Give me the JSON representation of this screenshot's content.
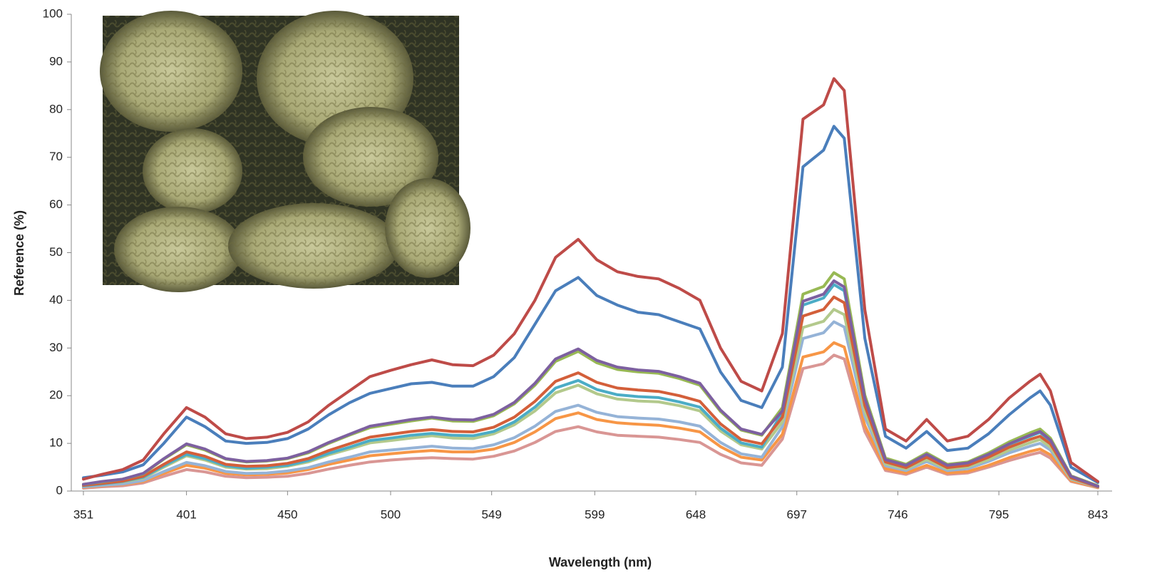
{
  "chart_data": {
    "type": "line",
    "xlabel": "Wavelength (nm)",
    "ylabel": "Reference (%)",
    "x": [
      351,
      360,
      370,
      380,
      390,
      401,
      410,
      420,
      430,
      440,
      450,
      460,
      470,
      480,
      490,
      500,
      510,
      520,
      530,
      540,
      550,
      560,
      570,
      580,
      591,
      600,
      610,
      620,
      630,
      640,
      650,
      660,
      670,
      680,
      690,
      700,
      710,
      715,
      720,
      730,
      740,
      750,
      760,
      770,
      780,
      790,
      800,
      810,
      815,
      820,
      830,
      843
    ],
    "xlim": [
      351,
      843
    ],
    "xticks": [
      351,
      401,
      450,
      500,
      549,
      599,
      648,
      697,
      746,
      795,
      843
    ],
    "ylim": [
      0,
      100
    ],
    "yticks": [
      0,
      10,
      20,
      30,
      40,
      50,
      60,
      70,
      80,
      90,
      100
    ],
    "grid": false,
    "series": [
      {
        "color": "#d99694",
        "values": [
          0.6,
          0.9,
          1.1,
          1.7,
          3.1,
          4.5,
          4.0,
          3.1,
          2.8,
          2.9,
          3.1,
          3.7,
          4.6,
          5.4,
          6.1,
          6.5,
          6.8,
          7.0,
          6.8,
          6.7,
          7.3,
          8.4,
          10.2,
          12.5,
          13.5,
          12.4,
          11.7,
          11.5,
          11.3,
          10.8,
          10.2,
          7.7,
          5.9,
          5.4,
          10.9,
          25.7,
          26.7,
          28.5,
          27.7,
          12.5,
          4.3,
          3.5,
          5.0,
          3.5,
          3.8,
          5.0,
          6.4,
          7.6,
          8.1,
          6.9,
          2.0,
          0.7
        ]
      },
      {
        "color": "#f79646",
        "values": [
          0.8,
          1.1,
          1.4,
          2.0,
          3.7,
          5.4,
          4.8,
          3.7,
          3.4,
          3.5,
          3.8,
          4.5,
          5.6,
          6.5,
          7.4,
          7.8,
          8.2,
          8.5,
          8.2,
          8.2,
          8.8,
          10.2,
          12.4,
          15.2,
          16.4,
          15.0,
          14.3,
          14.0,
          13.8,
          13.2,
          12.4,
          9.3,
          7.1,
          6.5,
          11.9,
          28.1,
          29.2,
          31.1,
          30.2,
          13.7,
          4.7,
          3.8,
          5.4,
          3.8,
          4.1,
          5.4,
          7.0,
          8.3,
          8.8,
          7.6,
          2.2,
          0.7
        ]
      },
      {
        "color": "#95b3d7",
        "values": [
          0.9,
          1.2,
          1.5,
          2.2,
          4.1,
          6.0,
          5.3,
          4.1,
          3.7,
          3.8,
          4.2,
          4.9,
          6.1,
          7.1,
          8.2,
          8.6,
          9.0,
          9.4,
          9.0,
          8.9,
          9.7,
          11.2,
          13.6,
          16.7,
          18.0,
          16.5,
          15.6,
          15.3,
          15.1,
          14.5,
          13.6,
          10.2,
          7.8,
          7.1,
          13.5,
          32.0,
          33.2,
          35.5,
          34.4,
          15.6,
          5.3,
          4.3,
          6.2,
          4.3,
          4.7,
          6.2,
          8.0,
          9.4,
          10.0,
          8.6,
          2.5,
          0.8
        ]
      },
      {
        "color": "#b3c98c",
        "values": [
          1.1,
          1.5,
          1.9,
          2.7,
          5.0,
          7.4,
          6.5,
          5.0,
          4.6,
          4.7,
          5.2,
          6.1,
          7.6,
          8.8,
          10.1,
          10.6,
          11.1,
          11.6,
          11.1,
          11.0,
          12.0,
          13.9,
          16.8,
          20.6,
          22.2,
          20.4,
          19.3,
          18.9,
          18.7,
          17.9,
          16.8,
          12.6,
          9.7,
          8.8,
          14.5,
          34.3,
          35.6,
          38.1,
          37.0,
          16.7,
          5.7,
          4.6,
          6.6,
          4.6,
          5.1,
          6.6,
          8.6,
          10.1,
          10.8,
          9.2,
          2.6,
          0.9
        ]
      },
      {
        "color": "#4bacc6",
        "values": [
          1.1,
          1.5,
          2.0,
          2.9,
          5.3,
          7.7,
          6.8,
          5.3,
          4.8,
          5.0,
          5.4,
          6.4,
          7.9,
          9.2,
          10.6,
          11.1,
          11.7,
          12.1,
          11.7,
          11.6,
          12.5,
          14.5,
          17.6,
          21.6,
          23.2,
          21.3,
          20.2,
          19.8,
          19.6,
          18.7,
          17.6,
          13.2,
          10.1,
          9.2,
          16.5,
          39.0,
          40.5,
          43.3,
          42.0,
          19.0,
          6.5,
          5.3,
          7.5,
          5.3,
          5.8,
          7.5,
          9.8,
          11.5,
          12.3,
          10.5,
          3.0,
          1.0
        ]
      },
      {
        "color": "#d35f3a",
        "values": [
          1.2,
          1.6,
          2.1,
          3.1,
          5.6,
          8.2,
          7.3,
          5.6,
          5.2,
          5.3,
          5.8,
          6.8,
          8.5,
          9.9,
          11.3,
          11.9,
          12.5,
          12.9,
          12.5,
          12.4,
          13.4,
          15.5,
          18.8,
          23.0,
          24.8,
          22.8,
          21.6,
          21.2,
          20.9,
          20.0,
          18.8,
          14.1,
          10.8,
          9.9,
          15.5,
          36.7,
          38.1,
          40.7,
          39.5,
          17.9,
          6.1,
          4.9,
          7.1,
          4.9,
          5.4,
          7.1,
          9.2,
          10.8,
          11.5,
          9.9,
          2.8,
          0.9
        ]
      },
      {
        "color": "#98b954",
        "values": [
          1.4,
          1.9,
          2.5,
          3.6,
          6.7,
          9.7,
          8.6,
          6.7,
          6.1,
          6.3,
          6.8,
          8.0,
          10.0,
          11.7,
          13.3,
          14.0,
          14.7,
          15.3,
          14.7,
          14.6,
          15.8,
          18.3,
          22.2,
          27.2,
          29.3,
          26.9,
          25.5,
          25.0,
          24.7,
          23.6,
          22.2,
          16.7,
          12.8,
          11.7,
          17.5,
          41.3,
          42.9,
          45.8,
          44.5,
          20.1,
          6.9,
          5.6,
          8.0,
          5.6,
          6.1,
          8.0,
          10.3,
          12.2,
          13.0,
          11.1,
          3.2,
          1.1
        ]
      },
      {
        "color": "#7d60a0",
        "values": [
          1.4,
          2.0,
          2.5,
          3.7,
          6.8,
          9.9,
          8.8,
          6.8,
          6.2,
          6.4,
          6.9,
          8.2,
          10.2,
          11.9,
          13.6,
          14.3,
          15.0,
          15.5,
          15.0,
          14.9,
          16.1,
          18.6,
          22.6,
          27.7,
          29.8,
          27.4,
          26.0,
          25.4,
          25.1,
          24.0,
          22.6,
          17.0,
          13.0,
          11.9,
          16.8,
          39.8,
          41.3,
          44.1,
          42.8,
          19.4,
          6.6,
          5.4,
          7.7,
          5.4,
          5.9,
          7.7,
          9.9,
          11.7,
          12.5,
          10.7,
          3.1,
          1.0
        ]
      },
      {
        "color": "#4a7ebb",
        "values": [
          2.8,
          3.3,
          4,
          5.5,
          10,
          15.5,
          13.5,
          10.5,
          10,
          10.2,
          11,
          13,
          16,
          18.5,
          20.5,
          21.5,
          22.5,
          22.8,
          22,
          22,
          24,
          28,
          35,
          42,
          44.8,
          41,
          39,
          37.5,
          37,
          35.5,
          34,
          25,
          19,
          17.5,
          26,
          68,
          71.5,
          76.5,
          74,
          32,
          11.5,
          9,
          12.5,
          8.5,
          9,
          12,
          16,
          19.5,
          21,
          18,
          5,
          1.8
        ]
      },
      {
        "color": "#be4b48",
        "values": [
          2.5,
          3.5,
          4.5,
          6.5,
          12,
          17.5,
          15.5,
          12,
          11,
          11.3,
          12.3,
          14.5,
          18,
          21,
          24,
          25.3,
          26.5,
          27.5,
          26.5,
          26.3,
          28.5,
          33,
          40,
          49,
          52.8,
          48.5,
          46,
          45,
          44.5,
          42.5,
          40,
          30,
          23,
          21,
          33,
          78,
          81,
          86.5,
          84,
          38,
          13,
          10.5,
          15,
          10.5,
          11.5,
          15,
          19.5,
          23,
          24.5,
          21,
          6,
          2
        ]
      }
    ]
  }
}
